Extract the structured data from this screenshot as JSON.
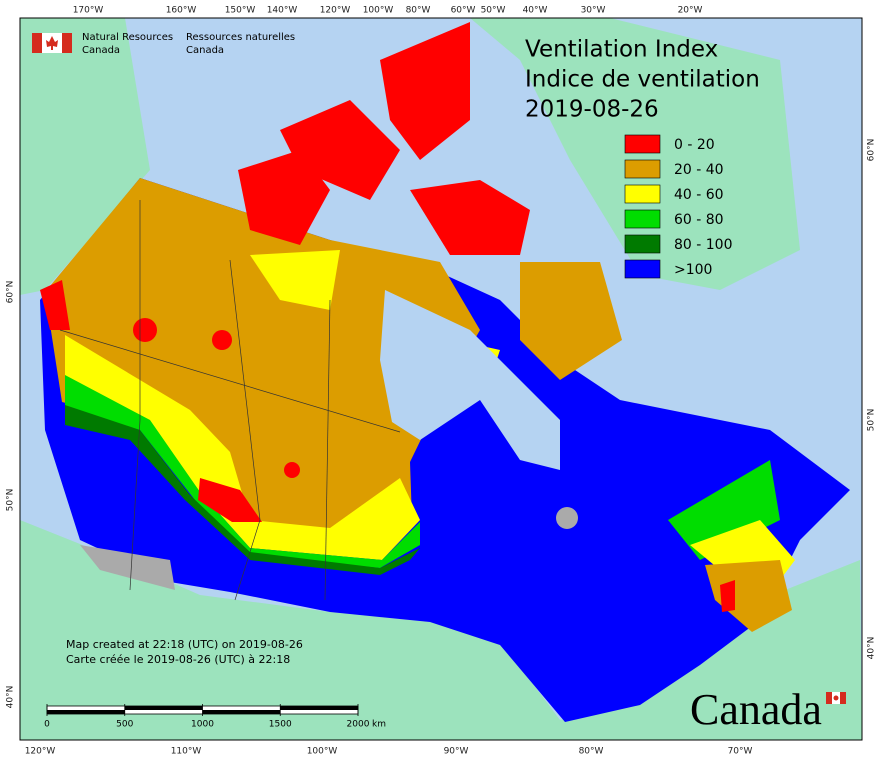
{
  "graticule": {
    "top": [
      "170°W",
      "160°W",
      "150°W",
      "140°W",
      "120°W",
      "100°W",
      "80°W",
      "60°W",
      "50°W",
      "40°W",
      "30°W",
      "20°W"
    ],
    "bottom": [
      "120°W",
      "110°W",
      "100°W",
      "90°W",
      "80°W",
      "70°W"
    ],
    "left": [
      "60°N",
      "50°N",
      "40°N"
    ],
    "right": [
      "60°N",
      "50°N",
      "40°N"
    ]
  },
  "agency": {
    "en": [
      "Natural Resources",
      "Canada"
    ],
    "fr": [
      "Ressources naturelles",
      "Canada"
    ]
  },
  "title": [
    "Ventilation Index",
    "Indice de ventilation",
    "2019-08-26"
  ],
  "legend": [
    {
      "label": "0 - 20",
      "color": "#ff0000"
    },
    {
      "label": "20 - 40",
      "color": "#dc9d00"
    },
    {
      "label": "40 - 60",
      "color": "#ffff00"
    },
    {
      "label": "60 - 80",
      "color": "#00dd00"
    },
    {
      "label": "80 - 100",
      "color": "#007a00"
    },
    {
      "label": ">100",
      "color": "#0000ff"
    }
  ],
  "note": [
    "Map created at 22:18 (UTC) on 2019-08-26",
    "Carte créée le 2019-08-26 (UTC) à 22:18"
  ],
  "scale": {
    "ticks": [
      0,
      500,
      1000,
      1500,
      2000
    ],
    "unit": "km"
  },
  "wordmark": "Canada"
}
